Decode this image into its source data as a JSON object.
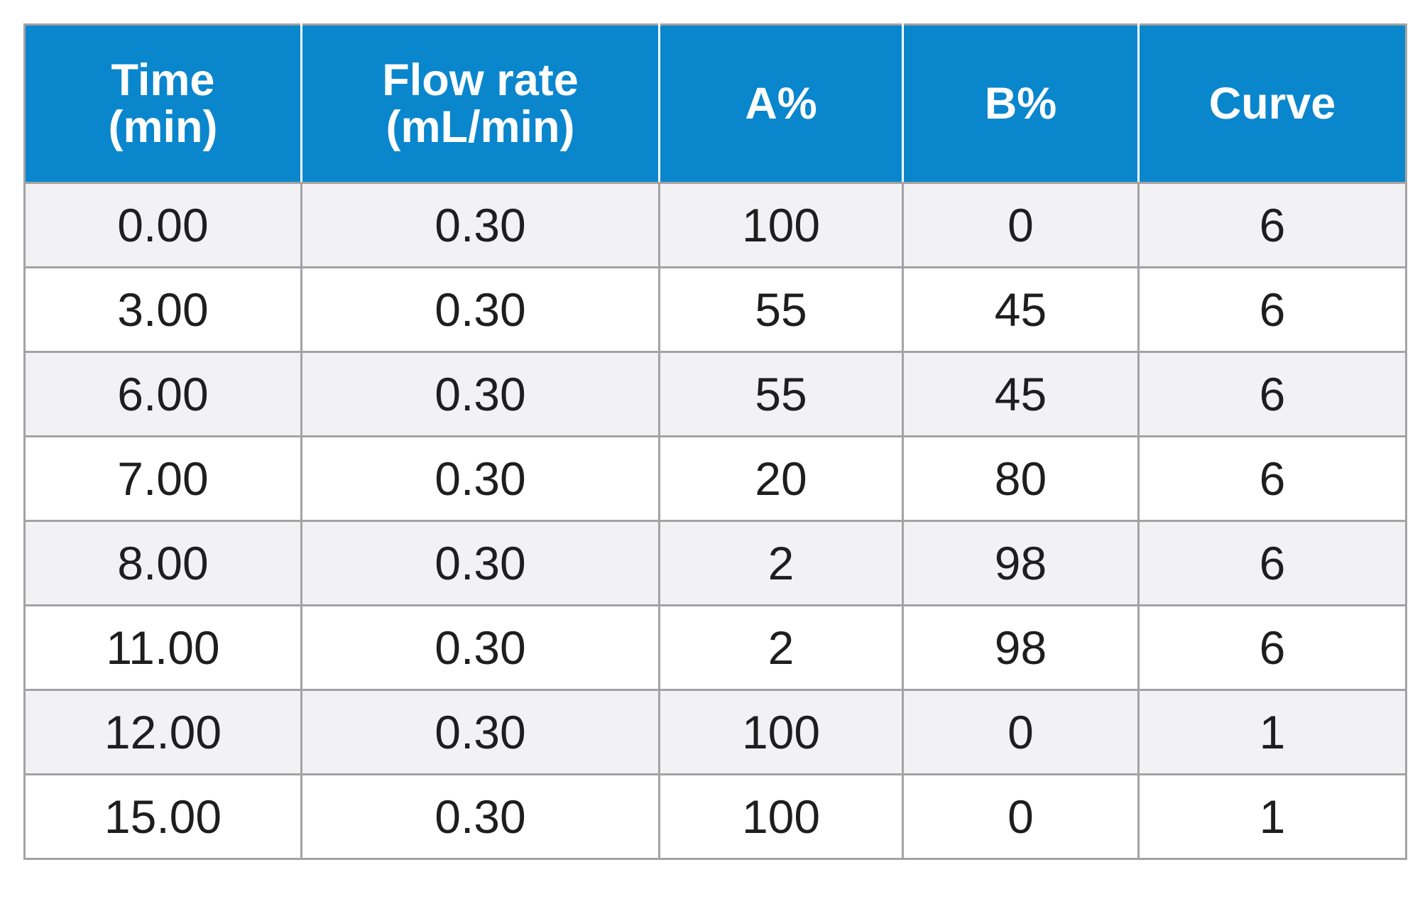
{
  "table": {
    "headers": [
      {
        "line1": "Time",
        "line2": "(min)"
      },
      {
        "line1": "Flow rate",
        "line2": "(mL/min)"
      },
      {
        "line1": "A%",
        "line2": ""
      },
      {
        "line1": "B%",
        "line2": ""
      },
      {
        "line1": "Curve",
        "line2": ""
      }
    ],
    "rows": [
      [
        "0.00",
        "0.30",
        "100",
        "0",
        "6"
      ],
      [
        "3.00",
        "0.30",
        "55",
        "45",
        "6"
      ],
      [
        "6.00",
        "0.30",
        "55",
        "45",
        "6"
      ],
      [
        "7.00",
        "0.30",
        "20",
        "80",
        "6"
      ],
      [
        "8.00",
        "0.30",
        "2",
        "98",
        "6"
      ],
      [
        "11.00",
        "0.30",
        "2",
        "98",
        "6"
      ],
      [
        "12.00",
        "0.30",
        "100",
        "0",
        "1"
      ],
      [
        "15.00",
        "0.30",
        "100",
        "0",
        "1"
      ]
    ],
    "colors": {
      "header_bg": "#0a86cd",
      "header_text": "#ffffff",
      "row_shade": "#f2f2f4",
      "row_plain": "#ffffff",
      "grid": "#a3a3a3",
      "body_text": "#1e1e1e"
    }
  }
}
